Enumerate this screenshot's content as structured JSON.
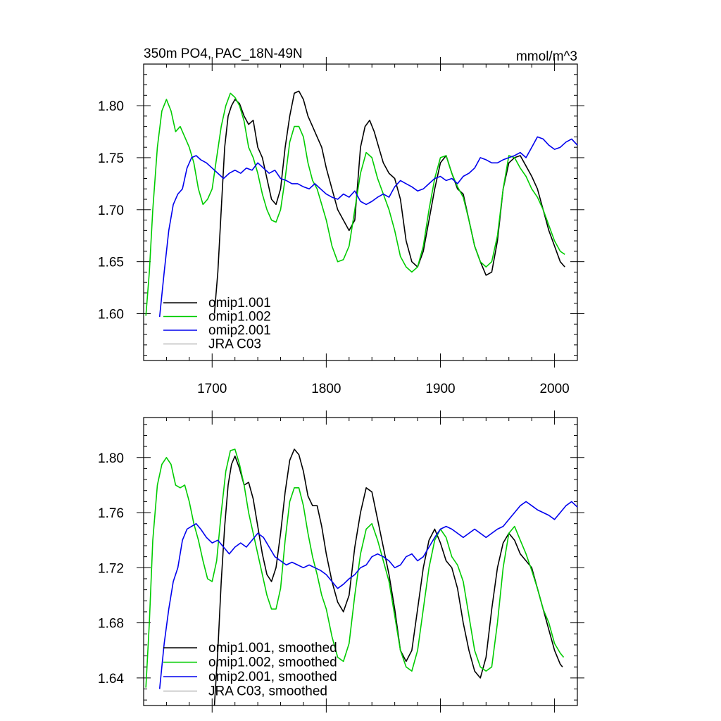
{
  "chart_data": [
    {
      "type": "line",
      "title": "350m PO4, PAC_18N-49N",
      "units": "mmol/m^3",
      "xlim": [
        1640,
        2020
      ],
      "ylim": [
        1.555,
        1.84
      ],
      "xticks": [
        1700,
        1800,
        1900,
        2000
      ],
      "xtick_labels": [
        "1700",
        "1800",
        "1900",
        "2000"
      ],
      "yticks": [
        1.6,
        1.65,
        1.7,
        1.75,
        1.8
      ],
      "ytick_labels": [
        "1.60",
        "1.65",
        "1.70",
        "1.75",
        "1.80"
      ],
      "legend_position": "bottom-left",
      "series": [
        {
          "name": "omip1.001",
          "color": "#000000",
          "x": [
            1702,
            1705,
            1708,
            1711,
            1714,
            1717,
            1720,
            1724,
            1728,
            1732,
            1736,
            1740,
            1744,
            1748,
            1752,
            1756,
            1760,
            1764,
            1768,
            1772,
            1776,
            1780,
            1784,
            1788,
            1792,
            1796,
            1800,
            1805,
            1810,
            1815,
            1820,
            1825,
            1830,
            1834,
            1838,
            1842,
            1846,
            1850,
            1855,
            1860,
            1865,
            1870,
            1875,
            1880,
            1885,
            1890,
            1895,
            1900,
            1905,
            1910,
            1915,
            1920,
            1925,
            1930,
            1935,
            1940,
            1945,
            1950,
            1955,
            1960,
            1965,
            1970,
            1975,
            1980,
            1985,
            1990,
            1995,
            2000,
            2005,
            2009
          ],
          "y": [
            1.6,
            1.64,
            1.7,
            1.76,
            1.79,
            1.8,
            1.806,
            1.802,
            1.79,
            1.782,
            1.786,
            1.76,
            1.75,
            1.73,
            1.71,
            1.705,
            1.72,
            1.76,
            1.79,
            1.812,
            1.814,
            1.806,
            1.79,
            1.78,
            1.77,
            1.76,
            1.74,
            1.72,
            1.7,
            1.69,
            1.68,
            1.69,
            1.76,
            1.78,
            1.786,
            1.775,
            1.76,
            1.745,
            1.735,
            1.73,
            1.71,
            1.67,
            1.65,
            1.645,
            1.66,
            1.69,
            1.72,
            1.745,
            1.752,
            1.735,
            1.72,
            1.715,
            1.69,
            1.665,
            1.65,
            1.637,
            1.64,
            1.67,
            1.72,
            1.745,
            1.75,
            1.752,
            1.742,
            1.732,
            1.72,
            1.7,
            1.68,
            1.665,
            1.65,
            1.645
          ]
        },
        {
          "name": "omip1.002",
          "color": "#00cc00",
          "x": [
            1642,
            1645,
            1648,
            1652,
            1656,
            1660,
            1664,
            1668,
            1672,
            1676,
            1680,
            1684,
            1688,
            1692,
            1696,
            1700,
            1704,
            1708,
            1712,
            1716,
            1720,
            1724,
            1728,
            1732,
            1736,
            1740,
            1744,
            1748,
            1752,
            1756,
            1760,
            1764,
            1768,
            1772,
            1776,
            1780,
            1784,
            1788,
            1792,
            1796,
            1800,
            1805,
            1810,
            1815,
            1820,
            1825,
            1830,
            1835,
            1840,
            1845,
            1850,
            1855,
            1860,
            1865,
            1870,
            1875,
            1880,
            1885,
            1890,
            1895,
            1900,
            1905,
            1910,
            1915,
            1920,
            1925,
            1930,
            1935,
            1940,
            1945,
            1950,
            1955,
            1960,
            1965,
            1970,
            1975,
            1980,
            1985,
            1990,
            1995,
            2000,
            2005,
            2009
          ],
          "y": [
            1.598,
            1.64,
            1.7,
            1.76,
            1.795,
            1.806,
            1.795,
            1.775,
            1.78,
            1.77,
            1.76,
            1.745,
            1.72,
            1.705,
            1.71,
            1.72,
            1.75,
            1.78,
            1.8,
            1.812,
            1.808,
            1.8,
            1.785,
            1.76,
            1.75,
            1.735,
            1.715,
            1.7,
            1.69,
            1.688,
            1.7,
            1.73,
            1.765,
            1.78,
            1.78,
            1.77,
            1.745,
            1.728,
            1.72,
            1.705,
            1.69,
            1.665,
            1.65,
            1.652,
            1.665,
            1.7,
            1.735,
            1.755,
            1.75,
            1.73,
            1.715,
            1.7,
            1.68,
            1.655,
            1.645,
            1.64,
            1.645,
            1.665,
            1.7,
            1.73,
            1.75,
            1.752,
            1.735,
            1.722,
            1.712,
            1.69,
            1.665,
            1.65,
            1.645,
            1.65,
            1.675,
            1.72,
            1.752,
            1.75,
            1.74,
            1.732,
            1.72,
            1.712,
            1.7,
            1.685,
            1.67,
            1.66,
            1.657
          ]
        },
        {
          "name": "omip2.001",
          "color": "#0000ee",
          "x": [
            1654,
            1658,
            1662,
            1666,
            1670,
            1674,
            1678,
            1682,
            1686,
            1690,
            1695,
            1700,
            1705,
            1710,
            1715,
            1720,
            1725,
            1730,
            1735,
            1740,
            1745,
            1750,
            1755,
            1760,
            1765,
            1770,
            1775,
            1780,
            1785,
            1790,
            1795,
            1800,
            1805,
            1810,
            1815,
            1820,
            1825,
            1830,
            1835,
            1840,
            1845,
            1850,
            1855,
            1860,
            1865,
            1870,
            1875,
            1880,
            1885,
            1890,
            1895,
            1900,
            1905,
            1910,
            1915,
            1920,
            1925,
            1930,
            1935,
            1940,
            1945,
            1950,
            1955,
            1960,
            1965,
            1970,
            1975,
            1980,
            1985,
            1990,
            1995,
            2000,
            2005,
            2010,
            2015,
            2020
          ],
          "y": [
            1.597,
            1.64,
            1.68,
            1.705,
            1.715,
            1.72,
            1.74,
            1.75,
            1.752,
            1.748,
            1.745,
            1.74,
            1.735,
            1.73,
            1.735,
            1.738,
            1.735,
            1.74,
            1.738,
            1.745,
            1.74,
            1.735,
            1.738,
            1.73,
            1.728,
            1.725,
            1.725,
            1.722,
            1.72,
            1.725,
            1.72,
            1.715,
            1.712,
            1.71,
            1.715,
            1.712,
            1.718,
            1.708,
            1.705,
            1.708,
            1.712,
            1.715,
            1.712,
            1.722,
            1.728,
            1.725,
            1.722,
            1.718,
            1.72,
            1.725,
            1.73,
            1.732,
            1.728,
            1.73,
            1.725,
            1.732,
            1.735,
            1.74,
            1.75,
            1.748,
            1.745,
            1.745,
            1.748,
            1.75,
            1.752,
            1.755,
            1.75,
            1.76,
            1.77,
            1.768,
            1.762,
            1.758,
            1.76,
            1.765,
            1.768,
            1.762
          ]
        },
        {
          "name": "JRA C03",
          "color": "#bbbbbb",
          "x": [],
          "y": []
        }
      ]
    },
    {
      "type": "line",
      "title": "",
      "xlim": [
        1640,
        2020
      ],
      "ylim": [
        1.62,
        1.829
      ],
      "xticks": [
        1700,
        1800,
        1900,
        2000
      ],
      "xtick_labels": [],
      "yticks": [
        1.64,
        1.68,
        1.72,
        1.76,
        1.8
      ],
      "ytick_labels": [
        "1.64",
        "1.68",
        "1.72",
        "1.76",
        "1.80"
      ],
      "legend_position": "bottom-left",
      "series": [
        {
          "name": "omip1.001, smoothed",
          "color": "#000000",
          "x": [
            1702,
            1705,
            1708,
            1711,
            1714,
            1717,
            1720,
            1724,
            1728,
            1732,
            1736,
            1740,
            1744,
            1748,
            1752,
            1756,
            1760,
            1764,
            1768,
            1772,
            1776,
            1780,
            1784,
            1788,
            1792,
            1796,
            1800,
            1805,
            1810,
            1815,
            1820,
            1825,
            1830,
            1835,
            1840,
            1845,
            1850,
            1855,
            1860,
            1865,
            1870,
            1875,
            1880,
            1885,
            1890,
            1895,
            1900,
            1905,
            1910,
            1915,
            1920,
            1925,
            1930,
            1935,
            1940,
            1945,
            1950,
            1955,
            1960,
            1965,
            1970,
            1975,
            1980,
            1985,
            1990,
            1995,
            2000,
            2005,
            2007
          ],
          "y": [
            1.62,
            1.66,
            1.71,
            1.75,
            1.78,
            1.795,
            1.801,
            1.792,
            1.78,
            1.782,
            1.77,
            1.75,
            1.73,
            1.715,
            1.71,
            1.72,
            1.745,
            1.775,
            1.798,
            1.806,
            1.802,
            1.79,
            1.772,
            1.765,
            1.765,
            1.75,
            1.73,
            1.71,
            1.695,
            1.688,
            1.7,
            1.735,
            1.76,
            1.778,
            1.775,
            1.755,
            1.735,
            1.715,
            1.69,
            1.66,
            1.652,
            1.66,
            1.69,
            1.72,
            1.74,
            1.748,
            1.738,
            1.725,
            1.72,
            1.705,
            1.68,
            1.66,
            1.645,
            1.64,
            1.655,
            1.69,
            1.72,
            1.738,
            1.745,
            1.74,
            1.73,
            1.725,
            1.72,
            1.705,
            1.69,
            1.675,
            1.66,
            1.65,
            1.648
          ]
        },
        {
          "name": "omip1.002, smoothed",
          "color": "#00cc00",
          "x": [
            1642,
            1645,
            1648,
            1652,
            1656,
            1660,
            1664,
            1668,
            1672,
            1676,
            1680,
            1684,
            1688,
            1692,
            1696,
            1700,
            1704,
            1708,
            1712,
            1716,
            1720,
            1724,
            1728,
            1732,
            1736,
            1740,
            1744,
            1748,
            1752,
            1756,
            1760,
            1764,
            1768,
            1772,
            1776,
            1780,
            1784,
            1788,
            1792,
            1796,
            1800,
            1805,
            1810,
            1815,
            1820,
            1825,
            1830,
            1835,
            1840,
            1845,
            1850,
            1855,
            1860,
            1865,
            1870,
            1875,
            1880,
            1885,
            1890,
            1895,
            1900,
            1905,
            1910,
            1915,
            1920,
            1925,
            1930,
            1935,
            1940,
            1945,
            1950,
            1955,
            1960,
            1965,
            1970,
            1975,
            1980,
            1985,
            1990,
            1995,
            2000,
            2005,
            2008
          ],
          "y": [
            1.633,
            1.68,
            1.74,
            1.78,
            1.795,
            1.8,
            1.795,
            1.78,
            1.778,
            1.78,
            1.768,
            1.752,
            1.74,
            1.725,
            1.712,
            1.71,
            1.725,
            1.76,
            1.79,
            1.805,
            1.806,
            1.795,
            1.78,
            1.76,
            1.745,
            1.73,
            1.715,
            1.7,
            1.69,
            1.69,
            1.705,
            1.74,
            1.768,
            1.778,
            1.778,
            1.765,
            1.745,
            1.728,
            1.715,
            1.7,
            1.69,
            1.67,
            1.655,
            1.652,
            1.665,
            1.7,
            1.73,
            1.748,
            1.752,
            1.74,
            1.725,
            1.71,
            1.685,
            1.66,
            1.648,
            1.645,
            1.66,
            1.69,
            1.72,
            1.74,
            1.748,
            1.742,
            1.728,
            1.722,
            1.71,
            1.685,
            1.66,
            1.648,
            1.645,
            1.648,
            1.68,
            1.72,
            1.745,
            1.75,
            1.74,
            1.73,
            1.718,
            1.705,
            1.69,
            1.68,
            1.665,
            1.658,
            1.655
          ]
        },
        {
          "name": "omip2.001, smoothed",
          "color": "#0000ee",
          "x": [
            1654,
            1658,
            1662,
            1666,
            1670,
            1674,
            1678,
            1682,
            1686,
            1690,
            1695,
            1700,
            1705,
            1710,
            1715,
            1720,
            1725,
            1730,
            1735,
            1740,
            1745,
            1750,
            1755,
            1760,
            1765,
            1770,
            1775,
            1780,
            1785,
            1790,
            1795,
            1800,
            1805,
            1810,
            1815,
            1820,
            1825,
            1830,
            1835,
            1840,
            1845,
            1850,
            1855,
            1860,
            1865,
            1870,
            1875,
            1880,
            1885,
            1890,
            1895,
            1900,
            1905,
            1910,
            1915,
            1920,
            1925,
            1930,
            1935,
            1940,
            1945,
            1950,
            1955,
            1960,
            1965,
            1970,
            1975,
            1980,
            1985,
            1990,
            1995,
            2000,
            2005,
            2010,
            2015,
            2020
          ],
          "y": [
            1.632,
            1.665,
            1.69,
            1.71,
            1.72,
            1.74,
            1.748,
            1.75,
            1.752,
            1.748,
            1.742,
            1.738,
            1.74,
            1.735,
            1.73,
            1.735,
            1.738,
            1.735,
            1.74,
            1.745,
            1.742,
            1.735,
            1.728,
            1.725,
            1.722,
            1.724,
            1.722,
            1.72,
            1.722,
            1.72,
            1.718,
            1.715,
            1.71,
            1.705,
            1.708,
            1.712,
            1.715,
            1.72,
            1.722,
            1.728,
            1.73,
            1.728,
            1.725,
            1.72,
            1.722,
            1.728,
            1.73,
            1.725,
            1.728,
            1.735,
            1.742,
            1.748,
            1.75,
            1.748,
            1.745,
            1.742,
            1.745,
            1.748,
            1.745,
            1.742,
            1.745,
            1.748,
            1.75,
            1.755,
            1.76,
            1.765,
            1.768,
            1.765,
            1.762,
            1.76,
            1.758,
            1.755,
            1.76,
            1.765,
            1.768,
            1.764
          ]
        },
        {
          "name": "JRA C03, smoothed",
          "color": "#bbbbbb",
          "x": [],
          "y": []
        }
      ]
    }
  ]
}
